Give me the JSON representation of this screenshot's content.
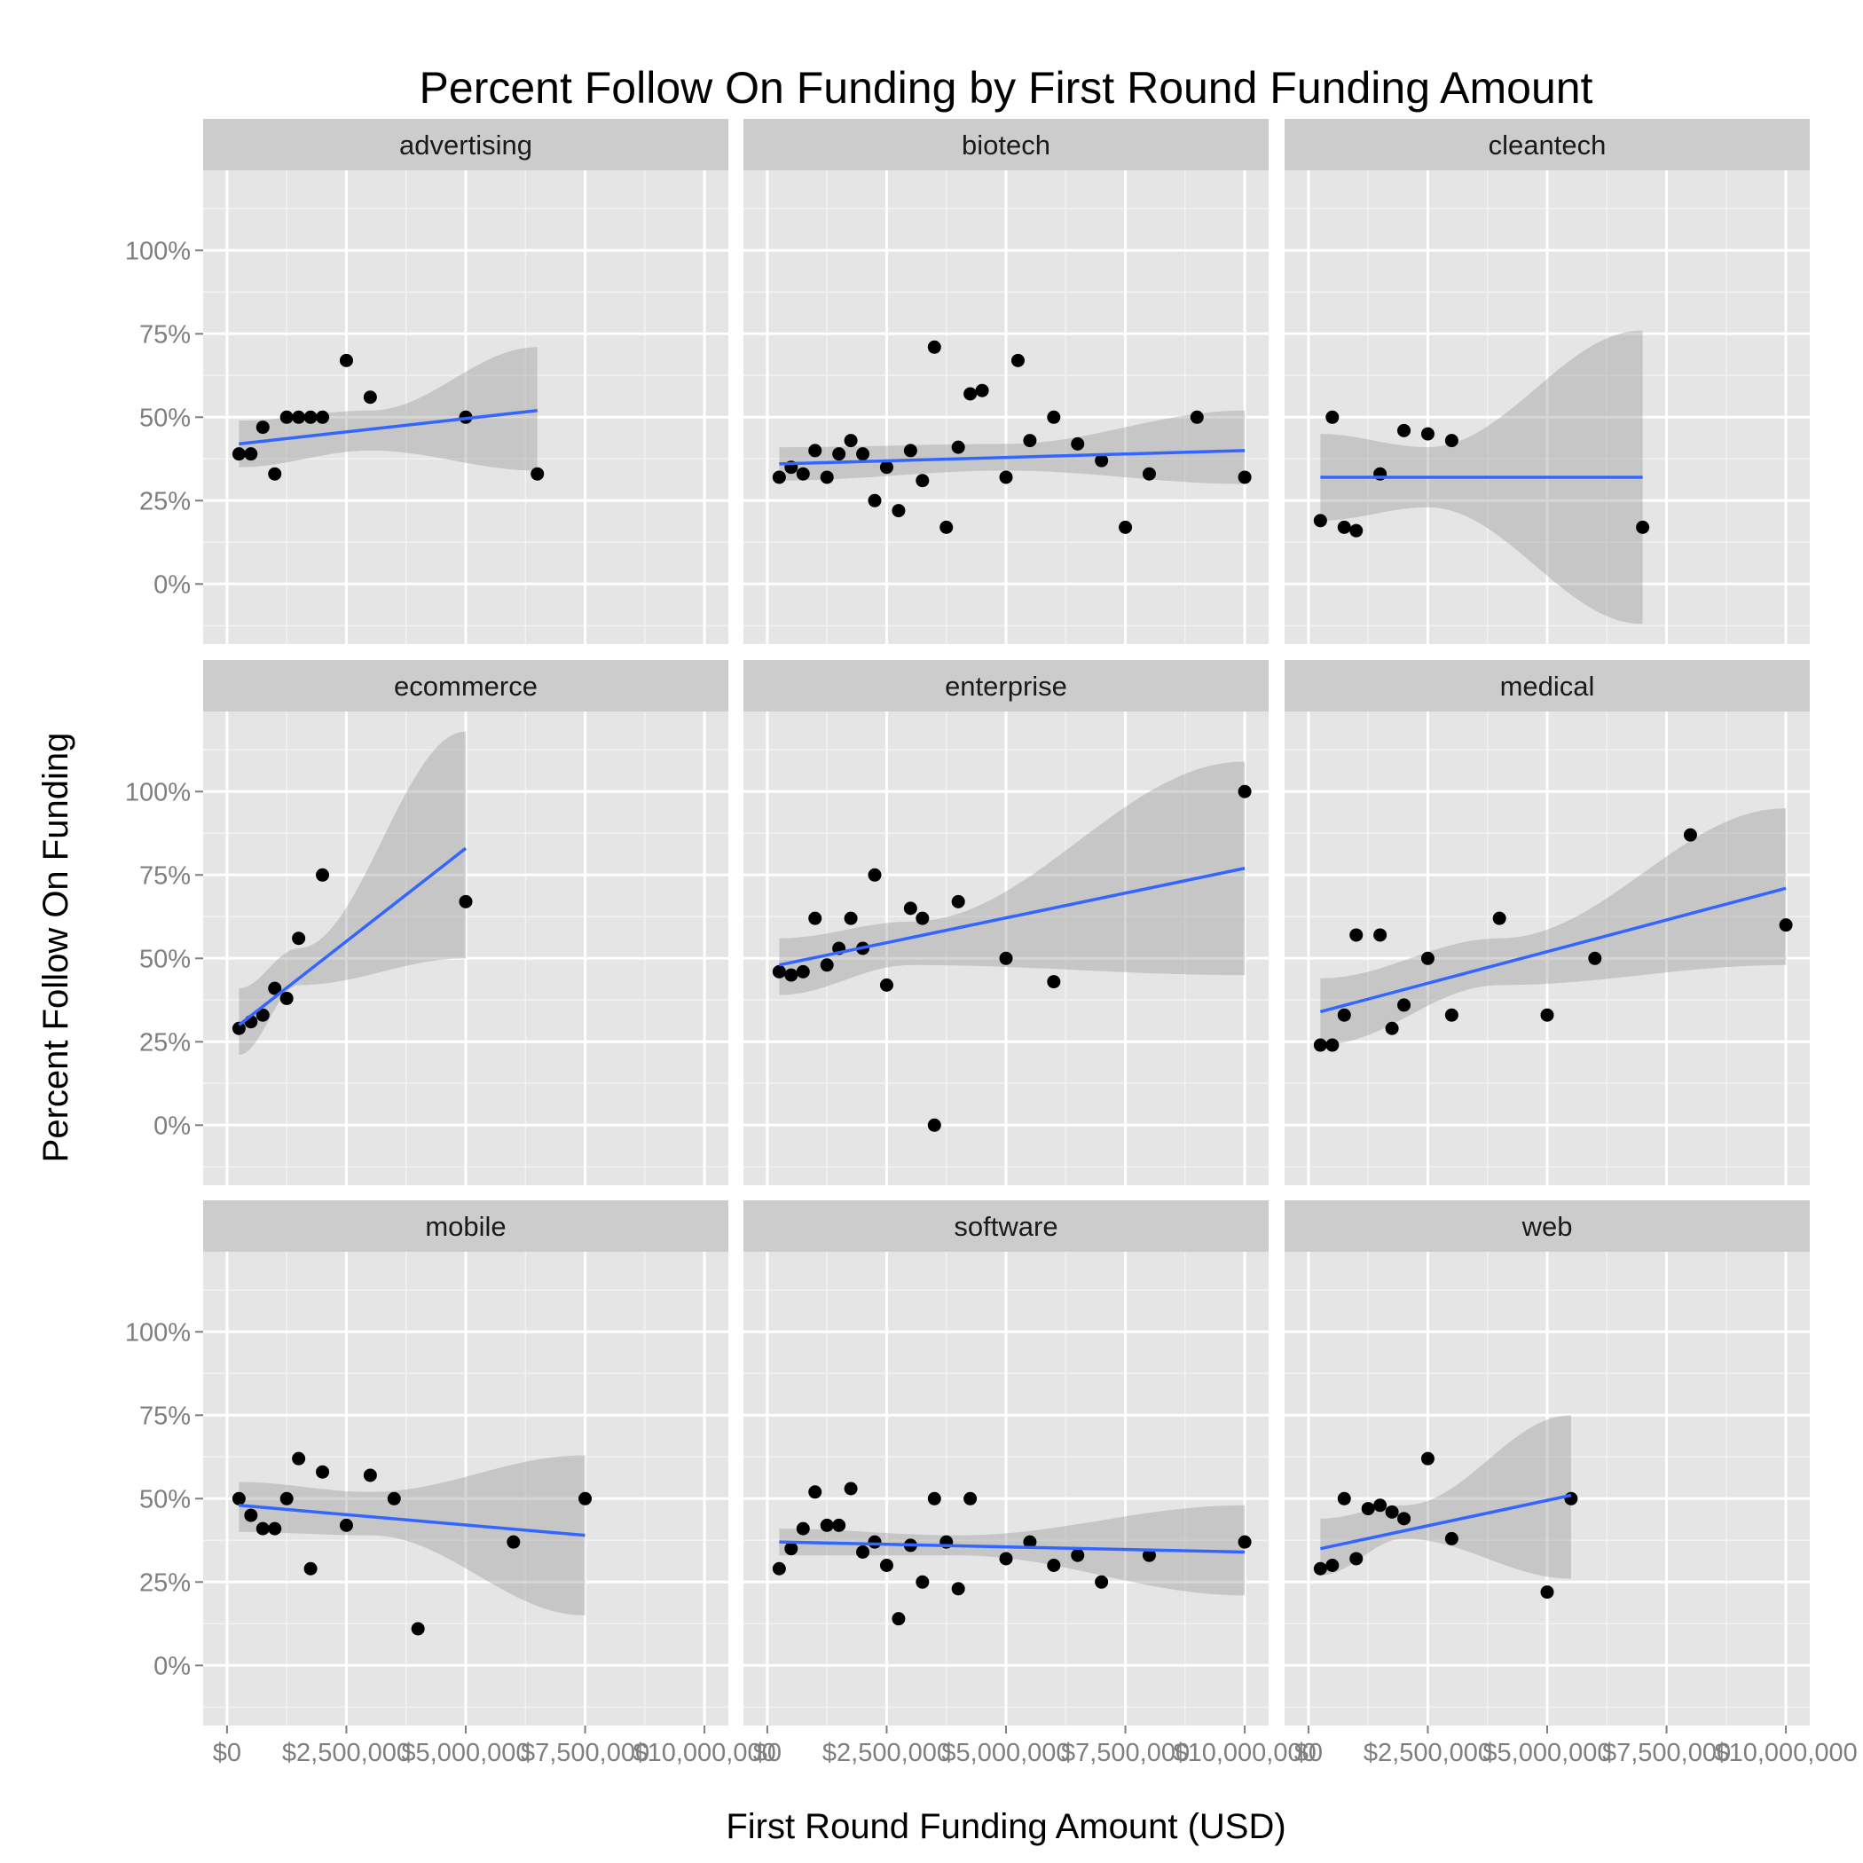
{
  "chart_data": {
    "type": "scatter",
    "title": "Percent Follow On Funding by First Round Funding Amount",
    "xlabel": "First Round Funding Amount (USD)",
    "ylabel": "Percent Follow On Funding",
    "xlim": [
      -500000,
      10500000
    ],
    "ylim": [
      -0.18,
      1.24
    ],
    "x_ticks": [
      0,
      2500000,
      5000000,
      7500000,
      10000000
    ],
    "x_tick_labels": [
      "$0",
      "$2,500,000",
      "$5,000,000",
      "$7,500,000",
      "$10,000,000"
    ],
    "y_ticks": [
      0,
      0.25,
      0.5,
      0.75,
      1.0
    ],
    "y_tick_labels": [
      "0%",
      "25%",
      "50%",
      "75%",
      "100%"
    ],
    "grid": true,
    "colors": {
      "panel_bg": "#e5e5e5",
      "strip_bg": "#cccccc",
      "grid": "#ffffff",
      "points": "#000000",
      "smooth_line": "#3366ff",
      "ribbon": "#999999"
    },
    "facets": [
      {
        "name": "advertising",
        "points": [
          [
            250000,
            0.39
          ],
          [
            500000,
            0.39
          ],
          [
            750000,
            0.47
          ],
          [
            1000000,
            0.33
          ],
          [
            1250000,
            0.5
          ],
          [
            1500000,
            0.5
          ],
          [
            1750000,
            0.5
          ],
          [
            2000000,
            0.5
          ],
          [
            2500000,
            0.67
          ],
          [
            3000000,
            0.56
          ],
          [
            5000000,
            0.5
          ],
          [
            6500000,
            0.33
          ]
        ],
        "fit": {
          "x": [
            250000,
            6500000
          ],
          "y": [
            0.42,
            0.52
          ]
        },
        "band": {
          "x": [
            250000,
            3000000,
            6500000
          ],
          "lower": [
            0.35,
            0.4,
            0.34
          ],
          "upper": [
            0.49,
            0.52,
            0.71
          ]
        }
      },
      {
        "name": "biotech",
        "points": [
          [
            250000,
            0.32
          ],
          [
            500000,
            0.35
          ],
          [
            750000,
            0.33
          ],
          [
            1000000,
            0.4
          ],
          [
            1250000,
            0.32
          ],
          [
            1500000,
            0.39
          ],
          [
            1750000,
            0.43
          ],
          [
            2000000,
            0.39
          ],
          [
            2250000,
            0.25
          ],
          [
            2500000,
            0.35
          ],
          [
            2750000,
            0.22
          ],
          [
            3000000,
            0.4
          ],
          [
            3250000,
            0.31
          ],
          [
            3500000,
            0.71
          ],
          [
            3750000,
            0.17
          ],
          [
            4000000,
            0.41
          ],
          [
            4250000,
            0.57
          ],
          [
            4500000,
            0.58
          ],
          [
            5000000,
            0.32
          ],
          [
            5250000,
            0.67
          ],
          [
            5500000,
            0.43
          ],
          [
            6000000,
            0.5
          ],
          [
            6500000,
            0.42
          ],
          [
            7000000,
            0.37
          ],
          [
            7500000,
            0.17
          ],
          [
            8000000,
            0.33
          ],
          [
            9000000,
            0.5
          ],
          [
            10000000,
            0.32
          ]
        ],
        "fit": {
          "x": [
            250000,
            10000000
          ],
          "y": [
            0.36,
            0.4
          ]
        },
        "band": {
          "x": [
            250000,
            5000000,
            10000000
          ],
          "lower": [
            0.31,
            0.34,
            0.3
          ],
          "upper": [
            0.41,
            0.42,
            0.52
          ]
        }
      },
      {
        "name": "cleantech",
        "points": [
          [
            250000,
            0.19
          ],
          [
            500000,
            0.5
          ],
          [
            750000,
            0.17
          ],
          [
            1000000,
            0.16
          ],
          [
            1500000,
            0.33
          ],
          [
            2000000,
            0.46
          ],
          [
            2500000,
            0.45
          ],
          [
            3000000,
            0.43
          ],
          [
            7000000,
            0.17
          ]
        ],
        "fit": {
          "x": [
            250000,
            7000000
          ],
          "y": [
            0.32,
            0.32
          ]
        },
        "band": {
          "x": [
            250000,
            2500000,
            7000000
          ],
          "lower": [
            0.19,
            0.23,
            -0.12
          ],
          "upper": [
            0.45,
            0.41,
            0.76
          ]
        }
      },
      {
        "name": "ecommerce",
        "points": [
          [
            250000,
            0.29
          ],
          [
            500000,
            0.31
          ],
          [
            750000,
            0.33
          ],
          [
            1000000,
            0.41
          ],
          [
            1250000,
            0.38
          ],
          [
            1500000,
            0.56
          ],
          [
            2000000,
            0.75
          ],
          [
            5000000,
            0.67
          ]
        ],
        "fit": {
          "x": [
            250000,
            5000000
          ],
          "y": [
            0.3,
            0.83
          ]
        },
        "band": {
          "x": [
            250000,
            1500000,
            5000000
          ],
          "lower": [
            0.21,
            0.42,
            0.5
          ],
          "upper": [
            0.41,
            0.53,
            1.18
          ]
        }
      },
      {
        "name": "enterprise",
        "points": [
          [
            250000,
            0.46
          ],
          [
            500000,
            0.45
          ],
          [
            750000,
            0.46
          ],
          [
            1000000,
            0.62
          ],
          [
            1250000,
            0.48
          ],
          [
            1500000,
            0.53
          ],
          [
            1750000,
            0.62
          ],
          [
            2000000,
            0.53
          ],
          [
            2250000,
            0.75
          ],
          [
            2500000,
            0.42
          ],
          [
            3000000,
            0.65
          ],
          [
            3250000,
            0.62
          ],
          [
            3500000,
            0.0
          ],
          [
            4000000,
            0.67
          ],
          [
            5000000,
            0.5
          ],
          [
            6000000,
            0.43
          ],
          [
            10000000,
            1.0
          ]
        ],
        "fit": {
          "x": [
            250000,
            10000000
          ],
          "y": [
            0.48,
            0.77
          ]
        },
        "band": {
          "x": [
            250000,
            3000000,
            10000000
          ],
          "lower": [
            0.39,
            0.48,
            0.45
          ],
          "upper": [
            0.56,
            0.61,
            1.09
          ]
        }
      },
      {
        "name": "medical",
        "points": [
          [
            250000,
            0.24
          ],
          [
            500000,
            0.24
          ],
          [
            750000,
            0.33
          ],
          [
            1000000,
            0.57
          ],
          [
            1500000,
            0.57
          ],
          [
            1750000,
            0.29
          ],
          [
            2000000,
            0.36
          ],
          [
            2500000,
            0.5
          ],
          [
            3000000,
            0.33
          ],
          [
            4000000,
            0.62
          ],
          [
            5000000,
            0.33
          ],
          [
            6000000,
            0.5
          ],
          [
            8000000,
            0.87
          ],
          [
            10000000,
            0.6
          ]
        ],
        "fit": {
          "x": [
            250000,
            10000000
          ],
          "y": [
            0.34,
            0.71
          ]
        },
        "band": {
          "x": [
            250000,
            4000000,
            10000000
          ],
          "lower": [
            0.24,
            0.42,
            0.48
          ],
          "upper": [
            0.44,
            0.56,
            0.95
          ]
        }
      },
      {
        "name": "mobile",
        "points": [
          [
            250000,
            0.5
          ],
          [
            500000,
            0.45
          ],
          [
            750000,
            0.41
          ],
          [
            1000000,
            0.41
          ],
          [
            1250000,
            0.5
          ],
          [
            1500000,
            0.62
          ],
          [
            1750000,
            0.29
          ],
          [
            2000000,
            0.58
          ],
          [
            2500000,
            0.42
          ],
          [
            3000000,
            0.57
          ],
          [
            3500000,
            0.5
          ],
          [
            4000000,
            0.11
          ],
          [
            6000000,
            0.37
          ],
          [
            7500000,
            0.5
          ]
        ],
        "fit": {
          "x": [
            250000,
            7500000
          ],
          "y": [
            0.48,
            0.39
          ]
        },
        "band": {
          "x": [
            250000,
            3000000,
            7500000
          ],
          "lower": [
            0.4,
            0.39,
            0.15
          ],
          "upper": [
            0.55,
            0.52,
            0.63
          ]
        }
      },
      {
        "name": "software",
        "points": [
          [
            250000,
            0.29
          ],
          [
            500000,
            0.35
          ],
          [
            750000,
            0.41
          ],
          [
            1000000,
            0.52
          ],
          [
            1250000,
            0.42
          ],
          [
            1500000,
            0.42
          ],
          [
            1750000,
            0.53
          ],
          [
            2000000,
            0.34
          ],
          [
            2250000,
            0.37
          ],
          [
            2500000,
            0.3
          ],
          [
            2750000,
            0.14
          ],
          [
            3000000,
            0.36
          ],
          [
            3250000,
            0.25
          ],
          [
            3500000,
            0.5
          ],
          [
            3750000,
            0.37
          ],
          [
            4000000,
            0.23
          ],
          [
            4250000,
            0.5
          ],
          [
            5000000,
            0.32
          ],
          [
            5500000,
            0.37
          ],
          [
            6000000,
            0.3
          ],
          [
            6500000,
            0.33
          ],
          [
            7000000,
            0.25
          ],
          [
            8000000,
            0.33
          ],
          [
            10000000,
            0.37
          ]
        ],
        "fit": {
          "x": [
            250000,
            10000000
          ],
          "y": [
            0.37,
            0.34
          ]
        },
        "band": {
          "x": [
            250000,
            4000000,
            10000000
          ],
          "lower": [
            0.33,
            0.33,
            0.21
          ],
          "upper": [
            0.41,
            0.39,
            0.48
          ]
        }
      },
      {
        "name": "web",
        "points": [
          [
            250000,
            0.29
          ],
          [
            500000,
            0.3
          ],
          [
            750000,
            0.5
          ],
          [
            1000000,
            0.32
          ],
          [
            1250000,
            0.47
          ],
          [
            1500000,
            0.48
          ],
          [
            1750000,
            0.46
          ],
          [
            2000000,
            0.44
          ],
          [
            2500000,
            0.62
          ],
          [
            3000000,
            0.38
          ],
          [
            5000000,
            0.22
          ],
          [
            5500000,
            0.5
          ]
        ],
        "fit": {
          "x": [
            250000,
            5500000
          ],
          "y": [
            0.35,
            0.51
          ]
        },
        "band": {
          "x": [
            250000,
            2000000,
            5500000
          ],
          "lower": [
            0.27,
            0.38,
            0.26
          ],
          "upper": [
            0.44,
            0.48,
            0.75
          ]
        }
      }
    ]
  }
}
